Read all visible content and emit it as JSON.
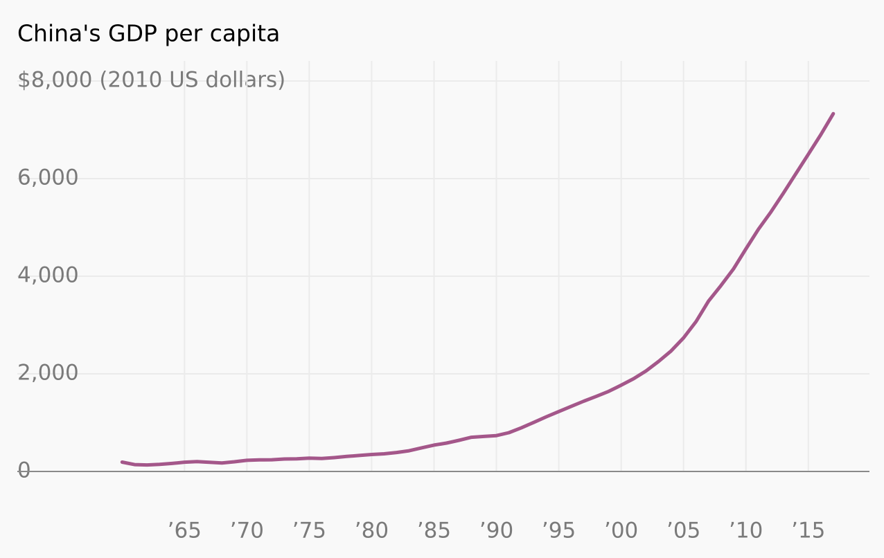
{
  "chart_data": {
    "type": "line",
    "title": "China's GDP per capita",
    "x": [
      1960,
      1961,
      1962,
      1963,
      1964,
      1965,
      1966,
      1967,
      1968,
      1969,
      1970,
      1971,
      1972,
      1973,
      1974,
      1975,
      1976,
      1977,
      1978,
      1979,
      1980,
      1981,
      1982,
      1983,
      1984,
      1985,
      1986,
      1987,
      1988,
      1989,
      1990,
      1991,
      1992,
      1993,
      1994,
      1995,
      1996,
      1997,
      1998,
      1999,
      2000,
      2001,
      2002,
      2003,
      2004,
      2005,
      2006,
      2007,
      2008,
      2009,
      2010,
      2011,
      2012,
      2013,
      2014,
      2015,
      2016,
      2017
    ],
    "values": [
      192,
      140,
      133,
      145,
      165,
      190,
      203,
      187,
      174,
      199,
      228,
      237,
      240,
      255,
      258,
      273,
      265,
      283,
      308,
      327,
      348,
      361,
      388,
      424,
      483,
      541,
      581,
      639,
      700,
      718,
      735,
      794,
      895,
      1006,
      1120,
      1229,
      1335,
      1440,
      1537,
      1641,
      1768,
      1901,
      2061,
      2255,
      2469,
      2737,
      3071,
      3491,
      3810,
      4149,
      4560,
      4961,
      5315,
      5700,
      6100,
      6500,
      6900,
      7330
    ],
    "color": "#a4578a",
    "xlim": [
      1951.6,
      2019.9
    ],
    "xticks": [
      {
        "value": 1965,
        "label": "’65"
      },
      {
        "value": 1970,
        "label": "’70"
      },
      {
        "value": 1975,
        "label": "’75"
      },
      {
        "value": 1980,
        "label": "’80"
      },
      {
        "value": 1985,
        "label": "’85"
      },
      {
        "value": 1990,
        "label": "’90"
      },
      {
        "value": 1995,
        "label": "’95"
      },
      {
        "value": 2000,
        "label": "’00"
      },
      {
        "value": 2005,
        "label": "’05"
      },
      {
        "value": 2010,
        "label": "’10"
      },
      {
        "value": 2015,
        "label": "’15"
      }
    ],
    "ylim": [
      -1000,
      8000
    ],
    "yticks": [
      0,
      {
        "value": 2000,
        "label": "2,000"
      },
      {
        "value": 4000,
        "label": "4,000"
      },
      {
        "value": 6000,
        "label": "6,000"
      },
      {
        "value": 8000,
        "label": "$8,000 (2010 US dollars)"
      }
    ],
    "grid": true
  }
}
